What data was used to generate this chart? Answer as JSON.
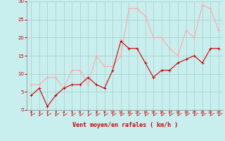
{
  "x": [
    0,
    1,
    2,
    3,
    4,
    5,
    6,
    7,
    8,
    9,
    10,
    11,
    12,
    13,
    14,
    15,
    16,
    17,
    18,
    19,
    20,
    21,
    22,
    23
  ],
  "wind_mean": [
    4,
    6,
    1,
    4,
    6,
    7,
    7,
    9,
    7,
    6,
    11,
    19,
    17,
    17,
    13,
    9,
    11,
    11,
    13,
    14,
    15,
    13,
    17,
    17
  ],
  "wind_gust": [
    7,
    7,
    9,
    9,
    6,
    11,
    11,
    7,
    15,
    12,
    12,
    15,
    28,
    28,
    26,
    20,
    20,
    17,
    15,
    22,
    20,
    29,
    28,
    22
  ],
  "mean_color": "#cc0000",
  "gust_color": "#ffaaaa",
  "bg_color": "#c8eeee",
  "grid_color": "#aacccc",
  "xlabel": "Vent moyen/en rafales ( km/h )",
  "xlabel_color": "#cc0000",
  "ylim": [
    0,
    30
  ],
  "yticks": [
    0,
    5,
    10,
    15,
    20,
    25,
    30
  ],
  "marker_size": 2.5
}
